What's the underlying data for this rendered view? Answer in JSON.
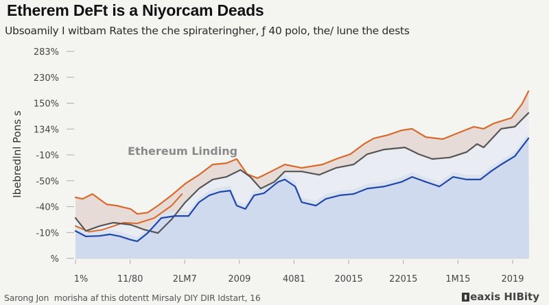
{
  "header": {
    "title": "Etherem DeFt is a Niyorcam Deads",
    "subtitle": "Ubsoamily I witbam Rates the che spirateringher, ƒ 40 polo, the/ lune the dests"
  },
  "footer": {
    "source": "Sarong Jon  morisha af this dotentt Mirsaly DIY DIR Idstart, 16",
    "brand": "eaxis HIBity",
    "brand_icon": "brand-logo-icon"
  },
  "chart_data": {
    "type": "area",
    "title": "Etherem DeFt is a Niyorcam Deads",
    "subtitle": "Ubsoamily I witbam Rates the che spirateringher, ƒ 40 polo, the/ lune the dests",
    "xlabel": "",
    "ylabel": "Ibebredlnl Pons s",
    "annotation": "Ethereum Linding",
    "x_ticks": [
      "1%",
      "11/80",
      "2LM7",
      "2009",
      "4081",
      "20015",
      "22015",
      "1M15",
      "2019"
    ],
    "y_ticks": [
      "%",
      "-10%",
      "-40%",
      "-50%",
      "-10%",
      "134%",
      "150%",
      "230%",
      "283%"
    ],
    "x_range": [
      0,
      8.3
    ],
    "y_range": [
      0,
      8
    ],
    "units_note": "x and y values are expressed in tick-index units (0 = first tick label, 8 = last tick label)",
    "grid": false,
    "legend": "none",
    "colors": {
      "orange": "#d9692a",
      "orange_band": "#e8cfc2",
      "gray": "#555555",
      "blue": "#1f47a8",
      "blue_fill": "#cfdaee",
      "light_fill": "#e4e8ef"
    },
    "series": [
      {
        "name": "orange-upper",
        "color": "#d9692a",
        "points": [
          [
            0,
            2.36
          ],
          [
            0.13,
            2.3
          ],
          [
            0.31,
            2.49
          ],
          [
            0.57,
            2.09
          ],
          [
            0.75,
            2.04
          ],
          [
            1.01,
            1.91
          ],
          [
            1.13,
            1.72
          ],
          [
            1.32,
            1.77
          ],
          [
            1.51,
            2.04
          ],
          [
            1.76,
            2.44
          ],
          [
            2.01,
            2.89
          ],
          [
            2.26,
            3.23
          ],
          [
            2.51,
            3.63
          ],
          [
            2.76,
            3.68
          ],
          [
            2.95,
            3.84
          ],
          [
            3.14,
            3.26
          ],
          [
            3.33,
            3.1
          ],
          [
            3.58,
            3.36
          ],
          [
            3.83,
            3.63
          ],
          [
            4.14,
            3.5
          ],
          [
            4.52,
            3.63
          ],
          [
            4.77,
            3.84
          ],
          [
            5.03,
            4.03
          ],
          [
            5.28,
            4.42
          ],
          [
            5.46,
            4.64
          ],
          [
            5.72,
            4.77
          ],
          [
            5.97,
            4.95
          ],
          [
            6.16,
            5.01
          ],
          [
            6.41,
            4.69
          ],
          [
            6.72,
            4.61
          ],
          [
            6.97,
            4.82
          ],
          [
            7.29,
            5.09
          ],
          [
            7.47,
            5.01
          ],
          [
            7.66,
            5.22
          ],
          [
            7.98,
            5.43
          ],
          [
            8.17,
            5.96
          ],
          [
            8.29,
            6.46
          ]
        ]
      },
      {
        "name": "orange-lower",
        "color": "#d9692a",
        "points": [
          [
            0,
            1.25
          ],
          [
            0.25,
            1.03
          ],
          [
            0.5,
            1.11
          ],
          [
            0.88,
            1.38
          ],
          [
            1.13,
            1.35
          ],
          [
            1.44,
            1.56
          ],
          [
            1.76,
            2.04
          ],
          [
            1.95,
            2.49
          ]
        ]
      },
      {
        "name": "gray",
        "color": "#555555",
        "points": [
          [
            0,
            1.56
          ],
          [
            0.19,
            1.06
          ],
          [
            0.44,
            1.25
          ],
          [
            0.69,
            1.38
          ],
          [
            1.01,
            1.3
          ],
          [
            1.26,
            1.11
          ],
          [
            1.51,
            0.98
          ],
          [
            1.76,
            1.51
          ],
          [
            2.01,
            2.17
          ],
          [
            2.26,
            2.7
          ],
          [
            2.51,
            3.05
          ],
          [
            2.76,
            3.15
          ],
          [
            3.02,
            3.42
          ],
          [
            3.2,
            3.15
          ],
          [
            3.39,
            2.7
          ],
          [
            3.64,
            2.96
          ],
          [
            3.83,
            3.36
          ],
          [
            4.14,
            3.36
          ],
          [
            4.46,
            3.23
          ],
          [
            4.77,
            3.5
          ],
          [
            5.09,
            3.63
          ],
          [
            5.34,
            4.03
          ],
          [
            5.65,
            4.21
          ],
          [
            6.03,
            4.29
          ],
          [
            6.28,
            4.03
          ],
          [
            6.53,
            3.84
          ],
          [
            6.85,
            3.9
          ],
          [
            7.16,
            4.11
          ],
          [
            7.35,
            4.42
          ],
          [
            7.47,
            4.29
          ],
          [
            7.79,
            5.01
          ],
          [
            8.04,
            5.09
          ],
          [
            8.29,
            5.62
          ]
        ]
      },
      {
        "name": "blue",
        "color": "#1f47a8",
        "points": [
          [
            0,
            1.06
          ],
          [
            0.19,
            0.85
          ],
          [
            0.44,
            0.87
          ],
          [
            0.63,
            0.93
          ],
          [
            0.82,
            0.85
          ],
          [
            1.01,
            0.72
          ],
          [
            1.13,
            0.66
          ],
          [
            1.32,
            0.98
          ],
          [
            1.57,
            1.56
          ],
          [
            1.82,
            1.64
          ],
          [
            2.07,
            1.64
          ],
          [
            2.26,
            2.17
          ],
          [
            2.45,
            2.44
          ],
          [
            2.64,
            2.57
          ],
          [
            2.83,
            2.62
          ],
          [
            2.95,
            2.04
          ],
          [
            3.11,
            1.91
          ],
          [
            3.27,
            2.44
          ],
          [
            3.45,
            2.52
          ],
          [
            3.71,
            2.96
          ],
          [
            3.83,
            3.05
          ],
          [
            4.02,
            2.78
          ],
          [
            4.14,
            2.17
          ],
          [
            4.4,
            2.04
          ],
          [
            4.58,
            2.3
          ],
          [
            4.84,
            2.44
          ],
          [
            5.09,
            2.49
          ],
          [
            5.34,
            2.7
          ],
          [
            5.65,
            2.78
          ],
          [
            5.97,
            2.96
          ],
          [
            6.16,
            3.15
          ],
          [
            6.41,
            2.96
          ],
          [
            6.66,
            2.78
          ],
          [
            6.91,
            3.15
          ],
          [
            7.16,
            3.05
          ],
          [
            7.41,
            3.05
          ],
          [
            7.6,
            3.36
          ],
          [
            7.79,
            3.63
          ],
          [
            8.04,
            3.95
          ],
          [
            8.29,
            4.64
          ]
        ]
      }
    ]
  }
}
